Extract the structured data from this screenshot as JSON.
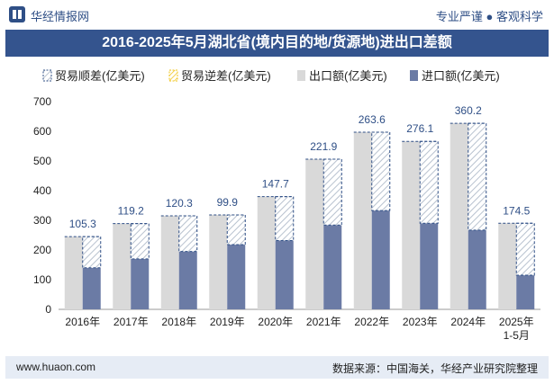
{
  "header": {
    "logo_text": "华经情报网",
    "tagline": "专业严谨 ● 客观科学"
  },
  "footer": {
    "website": "www.huaon.com",
    "source": "数据来源：中国海关，华经产业研究院整理"
  },
  "colors": {
    "title_bg": "#34548e",
    "export_bar": "#d9d9d9",
    "import_bar": "#6b7ba5",
    "surplus_hatch": "#b8c2cf",
    "surplus_border": "#2f4f86",
    "footer_bg": "#e6ecf5"
  },
  "chart_data": {
    "type": "bar",
    "title": "2016-2025年5月湖北省(境内目的地/货源地)进出口差额",
    "categories": [
      "2016年",
      "2017年",
      "2018年",
      "2019年",
      "2020年",
      "2021年",
      "2022年",
      "2023年",
      "2024年",
      "2025年\n1-5月"
    ],
    "ylim": [
      0,
      700
    ],
    "yticks": [
      0,
      100,
      200,
      300,
      400,
      500,
      600,
      700
    ],
    "legend_position": "top",
    "grid": false,
    "series": [
      {
        "name": "贸易顺差(亿美元)",
        "values": [
          105.3,
          119.2,
          120.3,
          99.9,
          147.7,
          221.9,
          263.6,
          276.1,
          360.2,
          174.5
        ]
      },
      {
        "name": "贸易逆差(亿美元)",
        "values": [
          0,
          0,
          0,
          0,
          0,
          0,
          0,
          0,
          0,
          0
        ]
      },
      {
        "name": "出口额(亿美元)",
        "values": [
          245,
          289,
          315,
          318,
          380,
          506,
          597,
          566,
          627,
          290
        ]
      },
      {
        "name": "进口额(亿美元)",
        "values": [
          140,
          170,
          195,
          218,
          232,
          284,
          333,
          290,
          267,
          115
        ]
      }
    ],
    "data_labels": [
      "105.3",
      "119.2",
      "120.3",
      "99.9",
      "147.7",
      "221.9",
      "263.6",
      "276.1",
      "360.2",
      "174.5"
    ]
  }
}
